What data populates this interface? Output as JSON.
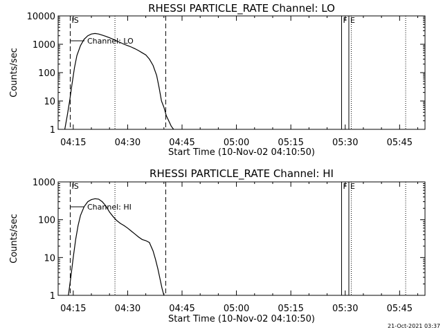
{
  "chart_data": [
    {
      "type": "line",
      "title": "RHESSI PARTICLE_RATE Channel: LO",
      "xlabel": "Start Time (10-Nov-02 04:10:50)",
      "ylabel": "Counts/sec",
      "yscale": "log",
      "ylim": [
        1,
        10000
      ],
      "yticks": [
        {
          "value": 1,
          "label": "1"
        },
        {
          "value": 10,
          "label": "10"
        },
        {
          "value": 100,
          "label": "100"
        },
        {
          "value": 1000,
          "label": "1000"
        },
        {
          "value": 10000,
          "label": "10000"
        }
      ],
      "xlim": [
        "04:10:50",
        "05:52:00"
      ],
      "xticks": [
        {
          "value": "04:15",
          "label": "04:15"
        },
        {
          "value": "04:30",
          "label": "04:30"
        },
        {
          "value": "04:45",
          "label": "04:45"
        },
        {
          "value": "05:00",
          "label": "05:00"
        },
        {
          "value": "05:15",
          "label": "05:15"
        },
        {
          "value": "05:30",
          "label": "05:30"
        },
        {
          "value": "05:45",
          "label": "05:45"
        }
      ],
      "legend": {
        "text": "Channel: LO",
        "placement": "top-left"
      },
      "series": [
        {
          "x": [
            "04:12:40",
            "04:13:20",
            "04:14:00",
            "04:14:40",
            "04:15:20",
            "04:16:00",
            "04:17:00",
            "04:18:00",
            "04:19:00",
            "04:20:00",
            "04:21:00",
            "04:22:00",
            "04:23:00",
            "04:24:00",
            "04:25:00",
            "04:26:00",
            "04:27:00",
            "04:28:00",
            "04:29:00",
            "04:30:00",
            "04:31:00",
            "04:32:00",
            "04:33:00",
            "04:34:00",
            "04:35:00",
            "04:36:00",
            "04:37:00",
            "04:38:00",
            "04:38:40",
            "04:39:20",
            "04:40:00",
            "04:40:40",
            "04:41:20",
            "04:42:00",
            "04:42:40"
          ],
          "values": [
            1,
            3,
            10,
            40,
            150,
            400,
            900,
            1500,
            2000,
            2300,
            2400,
            2300,
            2100,
            1900,
            1700,
            1500,
            1300,
            1150,
            1000,
            900,
            800,
            700,
            600,
            500,
            420,
            300,
            180,
            80,
            30,
            10,
            6,
            3,
            2,
            1.3,
            1
          ]
        }
      ],
      "markers": [
        {
          "type": "dashed",
          "x": "04:14:10",
          "label": "IS"
        },
        {
          "type": "dotted",
          "x": "04:26:30",
          "label": ""
        },
        {
          "type": "dashed",
          "x": "04:40:30",
          "label": ""
        },
        {
          "type": "solid",
          "x": "05:29:00",
          "label": "F"
        },
        {
          "type": "solid",
          "x": "05:31:00",
          "label": "E"
        },
        {
          "type": "dotted",
          "x": "05:31:40",
          "label": ""
        },
        {
          "type": "dotted",
          "x": "05:46:40",
          "label": ""
        }
      ]
    },
    {
      "type": "line",
      "title": "RHESSI PARTICLE_RATE Channel: HI",
      "xlabel": "Start Time (10-Nov-02 04:10:50)",
      "ylabel": "Counts/sec",
      "yscale": "log",
      "ylim": [
        1,
        1000
      ],
      "yticks": [
        {
          "value": 1,
          "label": "1"
        },
        {
          "value": 10,
          "label": "10"
        },
        {
          "value": 100,
          "label": "100"
        },
        {
          "value": 1000,
          "label": "1000"
        }
      ],
      "xlim": [
        "04:10:50",
        "05:52:00"
      ],
      "xticks": [
        {
          "value": "04:15",
          "label": "04:15"
        },
        {
          "value": "04:30",
          "label": "04:30"
        },
        {
          "value": "04:45",
          "label": "04:45"
        },
        {
          "value": "05:00",
          "label": "05:00"
        },
        {
          "value": "05:15",
          "label": "05:15"
        },
        {
          "value": "05:30",
          "label": "05:30"
        },
        {
          "value": "05:45",
          "label": "05:45"
        }
      ],
      "legend": {
        "text": "Channel: HI",
        "placement": "top-left"
      },
      "series": [
        {
          "x": [
            "04:13:40",
            "04:14:20",
            "04:15:00",
            "04:15:40",
            "04:16:20",
            "04:17:00",
            "04:18:00",
            "04:19:00",
            "04:20:00",
            "04:21:00",
            "04:22:00",
            "04:23:00",
            "04:24:00",
            "04:25:00",
            "04:26:00",
            "04:27:00",
            "04:28:00",
            "04:29:00",
            "04:30:00",
            "04:31:00",
            "04:32:00",
            "04:33:00",
            "04:34:00",
            "04:35:00",
            "04:36:00",
            "04:37:00",
            "04:37:40",
            "04:38:20",
            "04:39:00",
            "04:39:30",
            "04:40:00"
          ],
          "values": [
            1,
            3,
            10,
            30,
            70,
            130,
            220,
            300,
            340,
            360,
            350,
            300,
            230,
            160,
            120,
            95,
            80,
            70,
            60,
            50,
            42,
            35,
            30,
            28,
            25,
            15,
            9,
            5,
            2.5,
            1.5,
            1
          ]
        }
      ],
      "markers": [
        {
          "type": "dashed",
          "x": "04:14:10",
          "label": "IS"
        },
        {
          "type": "dotted",
          "x": "04:26:30",
          "label": ""
        },
        {
          "type": "dashed",
          "x": "04:40:30",
          "label": ""
        },
        {
          "type": "solid",
          "x": "05:29:00",
          "label": "F"
        },
        {
          "type": "solid",
          "x": "05:31:00",
          "label": "E"
        },
        {
          "type": "dotted",
          "x": "05:31:40",
          "label": ""
        },
        {
          "type": "dotted",
          "x": "05:46:40",
          "label": ""
        }
      ]
    }
  ],
  "footer": {
    "timestamp": "21-Oct-2021 03:37"
  }
}
